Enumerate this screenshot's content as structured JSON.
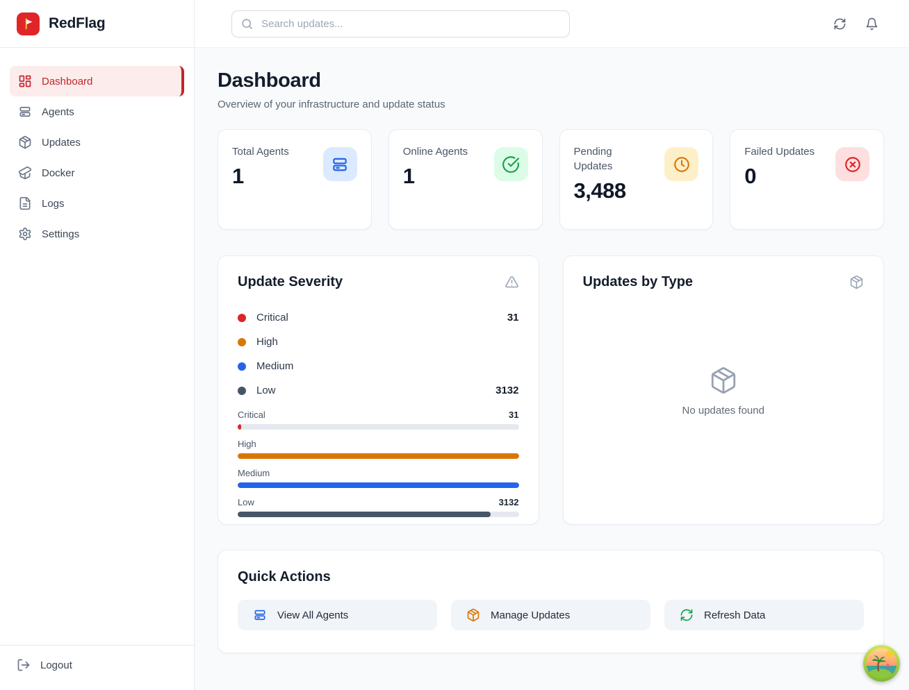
{
  "app": {
    "name": "RedFlag",
    "brand_red": "#e02529"
  },
  "sidebar": {
    "items": [
      {
        "label": "Dashboard",
        "icon": "layout-grid-icon",
        "active": true
      },
      {
        "label": "Agents",
        "icon": "server-icon",
        "active": false
      },
      {
        "label": "Updates",
        "icon": "package-icon",
        "active": false
      },
      {
        "label": "Docker",
        "icon": "package-open-icon",
        "active": false
      },
      {
        "label": "Logs",
        "icon": "file-text-icon",
        "active": false
      },
      {
        "label": "Settings",
        "icon": "gear-icon",
        "active": false
      }
    ],
    "logout_label": "Logout"
  },
  "topbar": {
    "search_placeholder": "Search updates...",
    "icons": [
      "refresh-icon",
      "bell-icon"
    ]
  },
  "page": {
    "title": "Dashboard",
    "subtitle": "Overview of your infrastructure and update status"
  },
  "stats": [
    {
      "label": "Total Agents",
      "value": "1",
      "icon": "server-icon",
      "icon_color": "#2563eb",
      "icon_bg": "#dbeafe"
    },
    {
      "label": "Online Agents",
      "value": "1",
      "icon": "check-circle-icon",
      "icon_color": "#16a34a",
      "icon_bg": "#dcfce7"
    },
    {
      "label": "Pending Updates",
      "value": "3,488",
      "icon": "clock-icon",
      "icon_color": "#d97706",
      "icon_bg": "#fdf0c9"
    },
    {
      "label": "Failed Updates",
      "value": "0",
      "icon": "x-circle-icon",
      "icon_color": "#dc2626",
      "icon_bg": "#fddfdf"
    }
  ],
  "severity": {
    "title": "Update Severity",
    "title_icon": "alert-triangle-icon",
    "legend": [
      {
        "label": "Critical",
        "value": "31",
        "color": "#dc2626"
      },
      {
        "label": "High",
        "value": "",
        "color": "#d97706"
      },
      {
        "label": "Medium",
        "value": "",
        "color": "#2563eb"
      },
      {
        "label": "Low",
        "value": "3132",
        "color": "#475569"
      }
    ],
    "bars": [
      {
        "label": "Critical",
        "value": "31",
        "percent": 1.2,
        "color": "#dc2626"
      },
      {
        "label": "High",
        "value": "",
        "percent": 100,
        "color": "#d97706"
      },
      {
        "label": "Medium",
        "value": "",
        "percent": 100,
        "color": "#2563eb"
      },
      {
        "label": "Low",
        "value": "3132",
        "percent": 90,
        "color": "#475569"
      }
    ]
  },
  "updates_by_type": {
    "title": "Updates by Type",
    "title_icon": "package-icon",
    "empty_icon": "package-icon",
    "empty_text": "No updates found"
  },
  "quick_actions": {
    "title": "Quick Actions",
    "buttons": [
      {
        "label": "View All Agents",
        "icon": "server-icon",
        "color": "#2563eb"
      },
      {
        "label": "Manage Updates",
        "icon": "package-icon",
        "color": "#d97706"
      },
      {
        "label": "Refresh Data",
        "icon": "refresh-icon",
        "color": "#16a34a"
      }
    ]
  },
  "floating_badge": {
    "name": "beach-island-badge"
  }
}
